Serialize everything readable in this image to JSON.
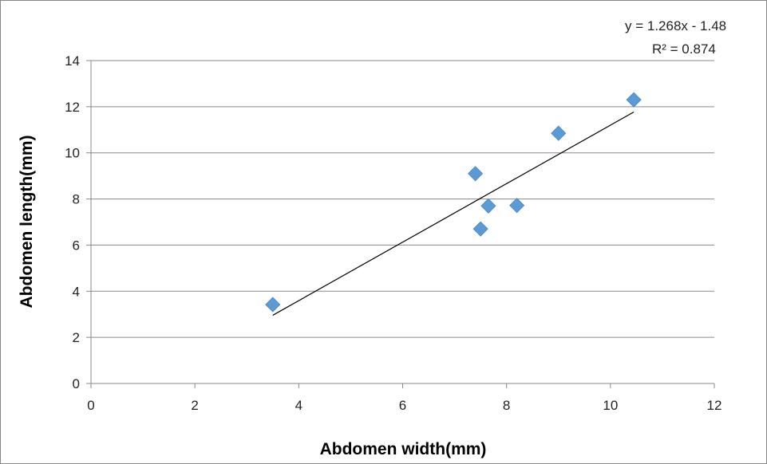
{
  "chart_data": {
    "type": "scatter",
    "title": "",
    "xlabel": "Abdomen width(mm)",
    "ylabel": "Abdomen length(mm)",
    "xlim": [
      0,
      12
    ],
    "ylim": [
      0,
      14
    ],
    "x_ticks": [
      "0",
      "2",
      "4",
      "6",
      "8",
      "10",
      "12"
    ],
    "y_ticks": [
      "0",
      "2",
      "4",
      "6",
      "8",
      "10",
      "12",
      "14"
    ],
    "grid": "horizontal major gridlines",
    "legend": "none",
    "marker": "diamond",
    "series": [
      {
        "x": [
          3.5,
          7.4,
          7.5,
          7.65,
          8.2,
          9.0,
          10.45
        ],
        "y": [
          3.42,
          9.1,
          6.7,
          7.7,
          7.72,
          10.85,
          12.3
        ],
        "color": "#5b9bd5"
      }
    ],
    "trendline": {
      "type": "linear",
      "slope": 1.268,
      "intercept": -1.48,
      "x_range": [
        3.5,
        10.45
      ],
      "color": "#000000",
      "equation_label": "y = 1.268x - 1.48",
      "r2_label": "R² = 0.874"
    }
  }
}
